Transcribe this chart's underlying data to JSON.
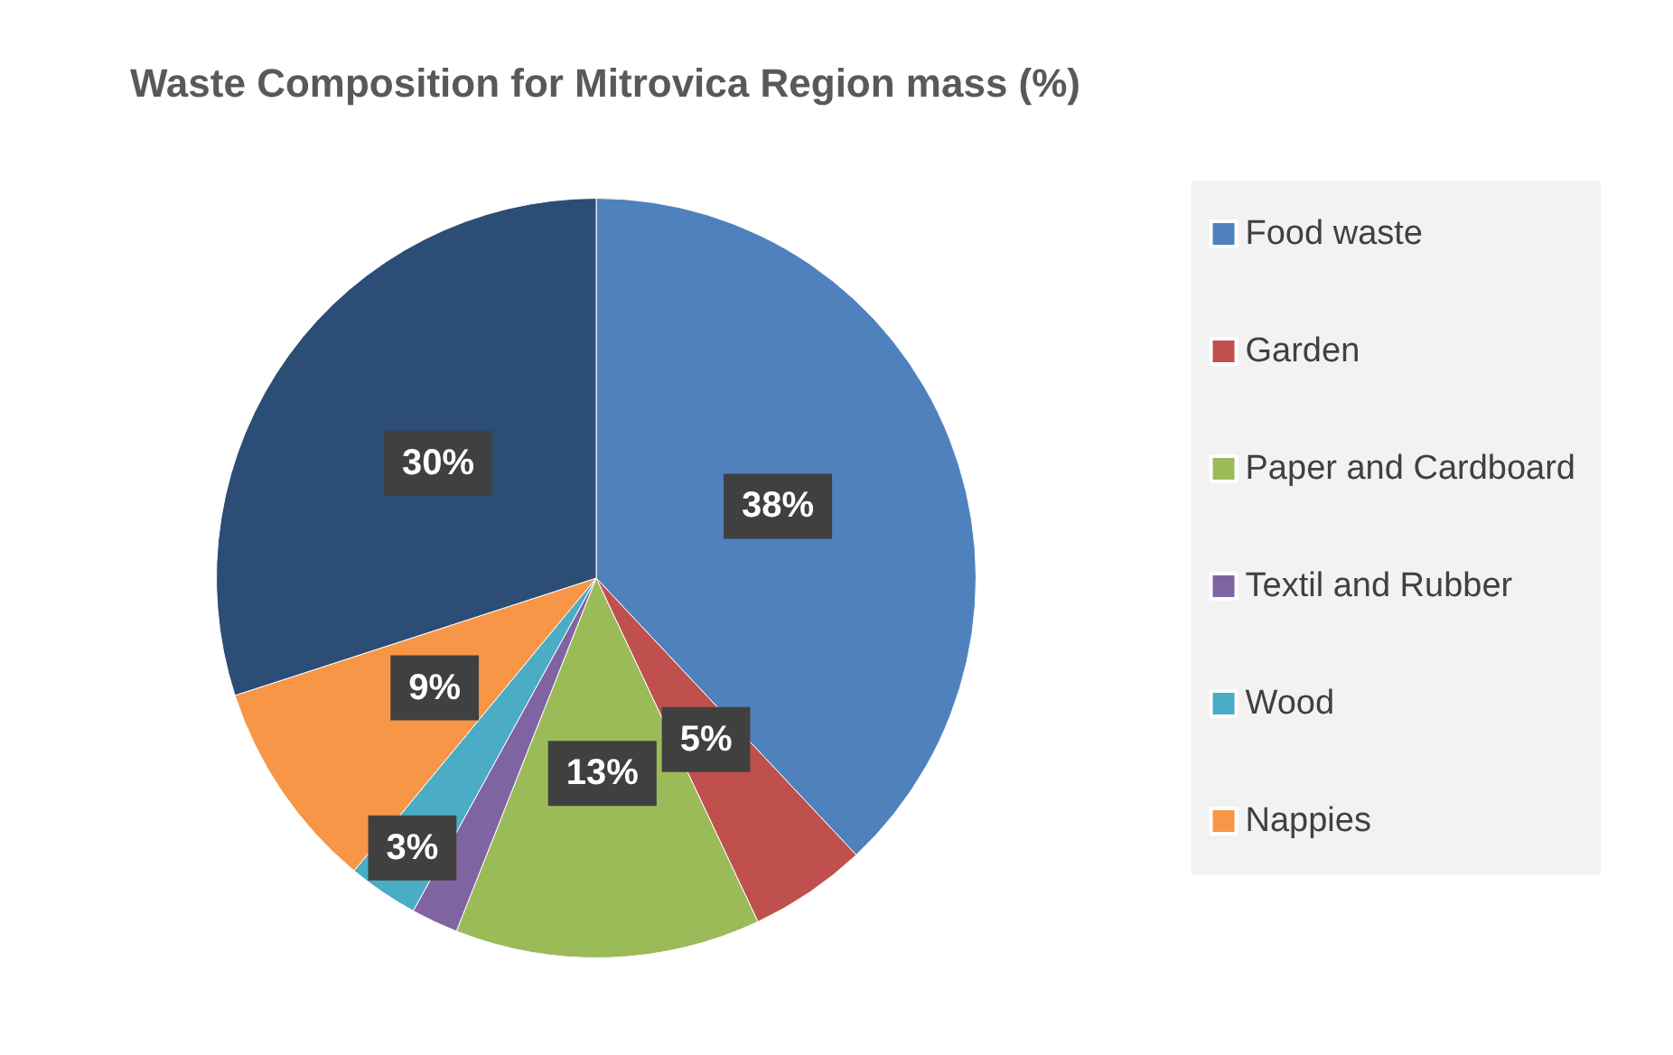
{
  "chart_data": {
    "type": "pie",
    "title": "Waste Composition for Mitrovica Region mass (%)",
    "categories": [
      "Food waste",
      "Garden",
      "Paper and Cardboard",
      "Textil and Rubber",
      "Wood",
      "Nappies",
      null
    ],
    "values": [
      38,
      5,
      13,
      2,
      3,
      9,
      30
    ],
    "value_labels": [
      "38%",
      "5%",
      "13%",
      null,
      "3%",
      "9%",
      "30%"
    ],
    "colors": [
      "#4f81bd",
      "#c0504d",
      "#9bbb59",
      "#8064a2",
      "#4bacc6",
      "#f79646",
      "#2c4d75"
    ],
    "legend": "right"
  }
}
